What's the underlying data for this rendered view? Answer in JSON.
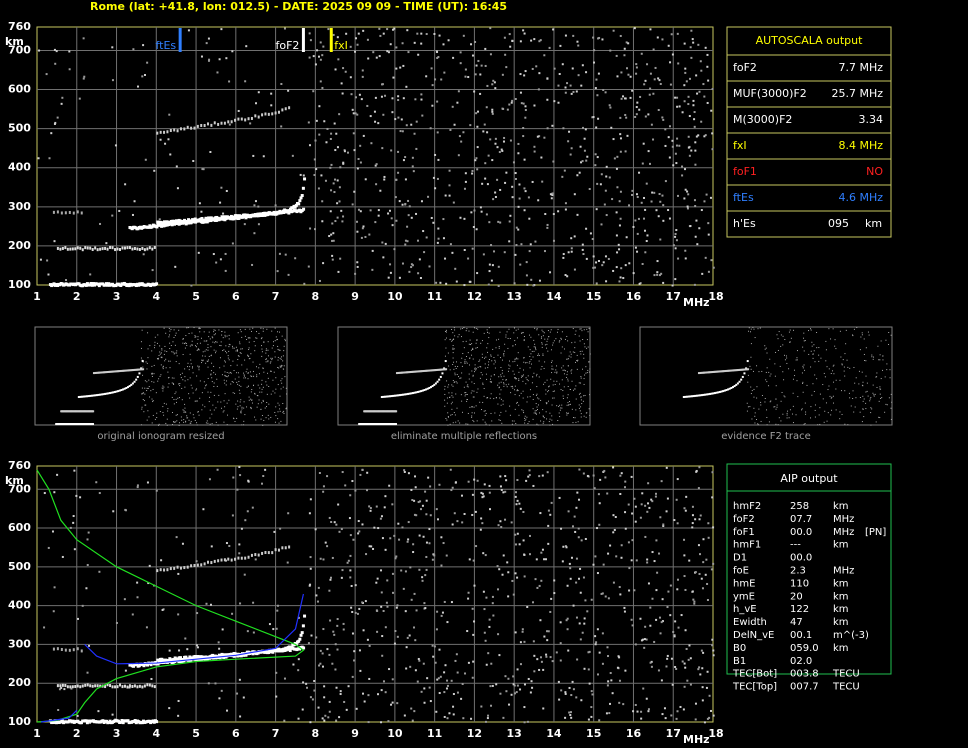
{
  "header": "Rome (lat: +41.8, lon: 012.5) - DATE: 2025 09 09 - TIME (UT): 16:45",
  "ionogram": {
    "y_unit": "km",
    "x_unit": "MHz",
    "yticks": [
      "760",
      "700",
      "600",
      "500",
      "400",
      "300",
      "200",
      "100"
    ],
    "xticks": [
      "1",
      "2",
      "3",
      "4",
      "5",
      "6",
      "7",
      "8",
      "9",
      "10",
      "11",
      "12",
      "13",
      "14",
      "15",
      "16",
      "17",
      "18"
    ],
    "markers": [
      {
        "label": "ftEs",
        "color": "#2f7fff"
      },
      {
        "label": "foF2",
        "color": "#ffffff"
      },
      {
        "label": "fxI",
        "color": "#ffff00"
      }
    ]
  },
  "autoscala": {
    "title": "AUTOSCALA output",
    "rows": [
      {
        "cells": [
          "foF2",
          "7.7 MHz"
        ],
        "color": "#ffffff"
      },
      {
        "cells": [
          "MUF(3000)F2",
          "25.7 MHz"
        ],
        "color": "#ffffff"
      },
      {
        "cells": [
          "M(3000)F2",
          "3.34"
        ],
        "color": "#ffffff"
      },
      {
        "cells": [
          "fxI",
          "8.4 MHz"
        ],
        "color": "#ffff00"
      },
      {
        "cells": [
          "foF1",
          "NO"
        ],
        "color": "#ff2020"
      },
      {
        "cells": [
          "ftEs",
          "4.6 MHz"
        ],
        "color": "#2f7fff"
      },
      {
        "cells": [
          "h'Es",
          "095",
          "km"
        ],
        "color": "#ffffff"
      }
    ]
  },
  "thumbnails": [
    "original ionogram resized",
    "eliminate multiple reflections",
    "evidence F2 trace"
  ],
  "aip": {
    "title": "AIP output",
    "rows": [
      [
        "hmF2",
        "258",
        "km"
      ],
      [
        "foF2",
        "07.7",
        "MHz"
      ],
      [
        "foF1",
        "00.0",
        "MHz",
        "[PN]"
      ],
      [
        "hmF1",
        "---",
        "km"
      ],
      [
        "D1",
        "00.0"
      ],
      [
        "foE",
        "2.3",
        "MHz"
      ],
      [
        "hmE",
        "110",
        "km"
      ],
      [
        "ymE",
        "20",
        "km"
      ],
      [
        "h_vE",
        "122",
        "km"
      ],
      [
        "Ewidth",
        "47",
        "km"
      ],
      [
        "DelN_vE",
        "00.1",
        "m^(-3)"
      ],
      [
        "B0",
        "059.0",
        "km"
      ],
      [
        "B1",
        "02.0"
      ],
      [
        "TEC[Bot]",
        "003.8",
        "TECU"
      ],
      [
        "TEC[Top]",
        "007.7",
        "TECU"
      ]
    ]
  }
}
